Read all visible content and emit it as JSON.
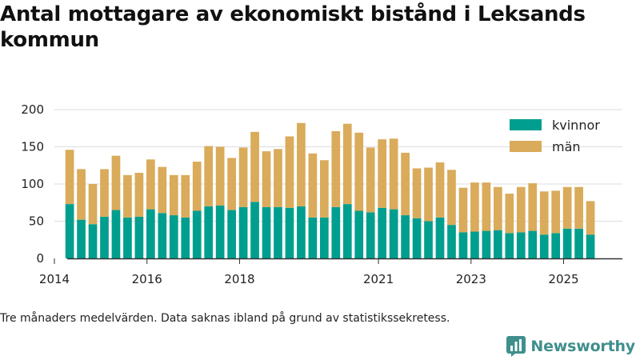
{
  "title": "Antal mottagare av ekonomiskt bistånd i Leksands kommun",
  "footnote": "Tre månaders medelvärden. Data saknas ibland på grund av statistikssekretess.",
  "logo": {
    "text": "Newsworthy",
    "icon": "bar-chart-logo-icon"
  },
  "colors": {
    "kvinnor": "#009e8e",
    "man": "#d9ab5a",
    "axis": "#333333",
    "grid": "#dddddd"
  },
  "chart_data": {
    "type": "bar",
    "stacked": true,
    "ylim": [
      0,
      200
    ],
    "yticks": [
      0,
      50,
      100,
      150,
      200
    ],
    "xlim": [
      2014.0,
      2026.27
    ],
    "xticks": [
      {
        "value": 2014.0,
        "label": "2014"
      },
      {
        "value": 2016.0,
        "label": "2016"
      },
      {
        "value": 2018.0,
        "label": "2018"
      },
      {
        "value": 2021.0,
        "label": "2021"
      },
      {
        "value": 2023.0,
        "label": "2023"
      },
      {
        "value": 2025.0,
        "label": "2025"
      }
    ],
    "legend": {
      "position": "top-right",
      "entries": [
        "kvinnor",
        "män"
      ]
    },
    "x_start": 2014.33,
    "x_step": 0.25,
    "series": [
      {
        "name": "kvinnor",
        "values": [
          73,
          52,
          46,
          56,
          65,
          55,
          56,
          66,
          61,
          58,
          55,
          64,
          70,
          71,
          65,
          69,
          76,
          69,
          69,
          68,
          70,
          55,
          55,
          69,
          73,
          64,
          62,
          68,
          66,
          58,
          54,
          50,
          55,
          45,
          35,
          36,
          37,
          38,
          34,
          35,
          37,
          32,
          34,
          40,
          40,
          32
        ]
      },
      {
        "name": "män",
        "values": [
          73,
          68,
          54,
          64,
          73,
          57,
          59,
          67,
          62,
          54,
          57,
          66,
          81,
          79,
          70,
          80,
          94,
          75,
          78,
          96,
          112,
          86,
          77,
          102,
          108,
          105,
          87,
          92,
          95,
          84,
          67,
          72,
          74,
          74,
          60,
          66,
          65,
          58,
          53,
          61,
          64,
          58,
          57,
          56,
          56,
          45
        ]
      }
    ]
  }
}
